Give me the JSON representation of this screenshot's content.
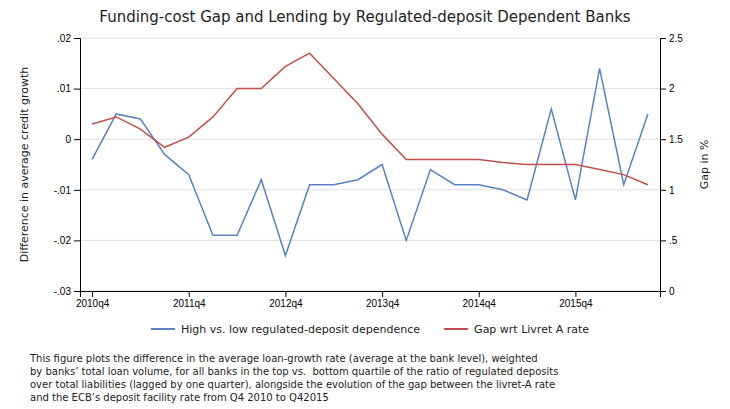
{
  "chart_data": {
    "type": "line",
    "title": "Funding-cost Gap and Lending by Regulated-deposit Dependent Banks",
    "ylabel": "Difference in average credit growth",
    "y2label": "Gap in %",
    "caption": "This figure plots the difference in the average loan-growth rate (average at the bank level), weighted\nby banks’ total loan volume, for all banks in the top vs.  bottom quartile of the ratio of regulated deposits\nover total liabilities (lagged by one quarter), alongside the evolution of the gap between the livret-A rate\nand the ECB’s deposit facility rate from Q4 2010 to Q42015",
    "categories": [
      "2010q4",
      null,
      null,
      null,
      "2011q4",
      null,
      null,
      null,
      "2012q4",
      null,
      null,
      null,
      "2013q4",
      null,
      null,
      null,
      "2014q4",
      null,
      null,
      null,
      "2015q4",
      null,
      null,
      null
    ],
    "series": [
      {
        "name": "High vs. low regulated-deposit dependence",
        "color": "#5b82c0",
        "axis": "y",
        "values": [
          -0.004,
          0.005,
          0.004,
          -0.003,
          -0.007,
          -0.019,
          -0.019,
          -0.008,
          -0.023,
          -0.009,
          -0.009,
          -0.008,
          -0.005,
          -0.02,
          -0.006,
          -0.009,
          -0.009,
          -0.01,
          -0.012,
          0.006,
          -0.012,
          0.014,
          -0.009,
          0.005
        ]
      },
      {
        "name": "Gap wrt Livret A rate",
        "color": "#c0504d",
        "axis": "y2",
        "values": [
          1.65,
          1.72,
          1.6,
          1.42,
          1.52,
          1.72,
          2.0,
          2.0,
          2.22,
          2.35,
          2.1,
          1.85,
          1.55,
          1.3,
          1.3,
          1.3,
          1.3,
          1.27,
          1.25,
          1.25,
          1.25,
          1.2,
          1.15,
          1.05
        ]
      }
    ],
    "ylim": [
      -0.03,
      0.02
    ],
    "yticks": [
      {
        "value": -0.03,
        "label": "-.03"
      },
      {
        "value": -0.02,
        "label": "-.02"
      },
      {
        "value": -0.01,
        "label": "-.01"
      },
      0,
      {
        "value": 0.01,
        "label": ".01"
      },
      {
        "value": 0.02,
        "label": ".02"
      }
    ],
    "y2lim": [
      0.0,
      2.5
    ],
    "y2ticks": [
      0,
      {
        "value": 0.5,
        "label": ".5"
      },
      1,
      1.5,
      2,
      2.5
    ],
    "grid": true,
    "legend": "bottom"
  }
}
